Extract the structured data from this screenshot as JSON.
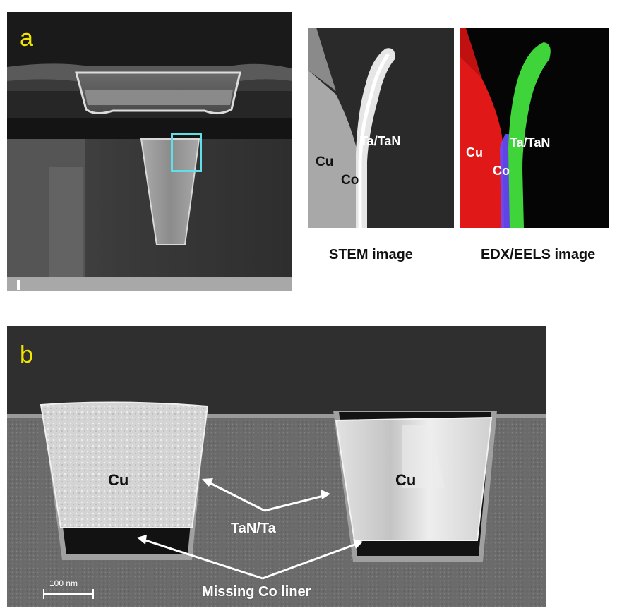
{
  "panel_a": {
    "letter": "a",
    "stem": {
      "labels": {
        "cu": "Cu",
        "co": "Co",
        "ta": "Ta/TaN"
      },
      "caption": "STEM image"
    },
    "edx": {
      "labels": {
        "cu": "Cu",
        "co": "Co",
        "ta": "Ta/TaN"
      },
      "caption": "EDX/EELS image"
    }
  },
  "panel_b": {
    "letter": "b",
    "left_trench_label": "Cu",
    "right_trench_label": "Cu",
    "barrier_label": "TaN/Ta",
    "liner_label": "Missing Co liner",
    "scalebar_label": "100 nm"
  },
  "colors": {
    "letter": "#f2e600",
    "highlight_box": "#5fe0e8",
    "edx_cu": "#e01818",
    "edx_co": "#6a4cff",
    "edx_ta": "#3ed43a"
  }
}
